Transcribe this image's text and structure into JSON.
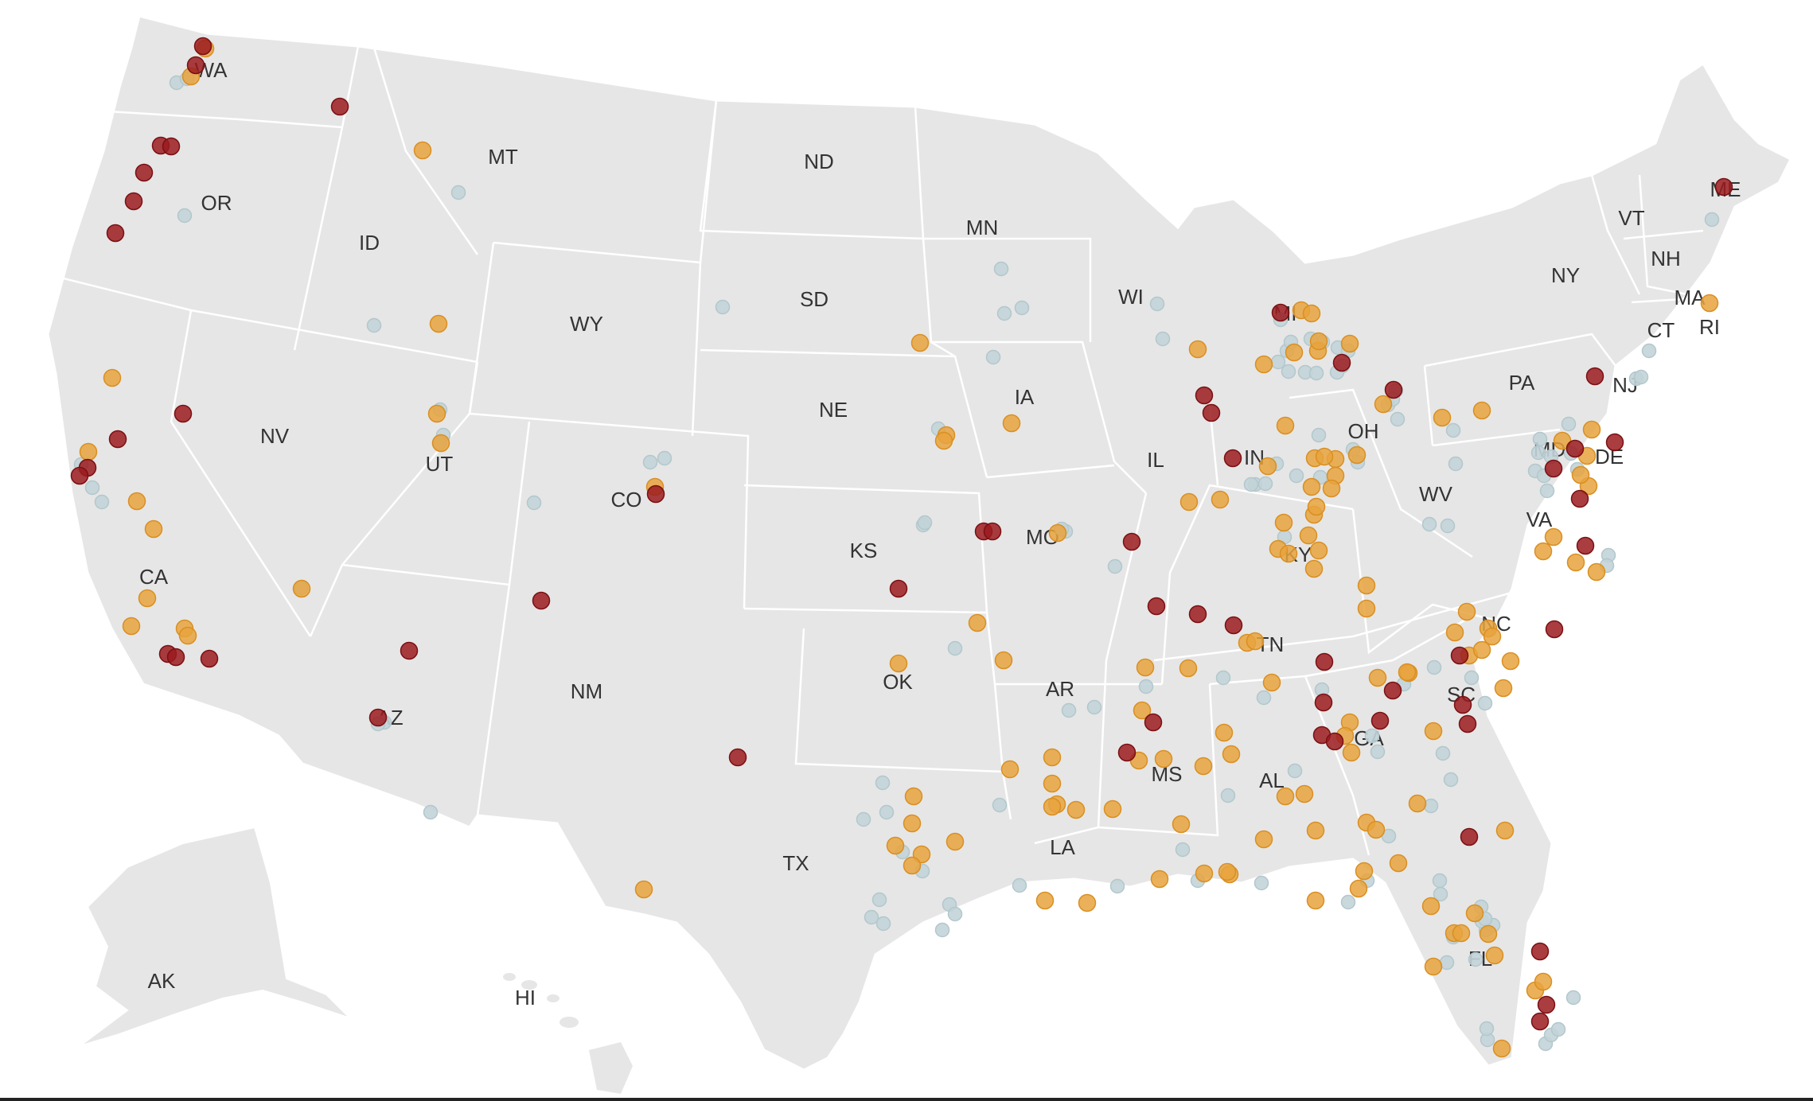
{
  "map": {
    "colors": {
      "background": "#ffffff",
      "land": "#e6e6e6",
      "border": "#ffffff",
      "red": "#9b1b1e",
      "orange": "#e8a33d",
      "blue": "#c2d4d8"
    },
    "state_labels": [
      "WA",
      "OR",
      "CA",
      "ID",
      "NV",
      "MT",
      "WY",
      "UT",
      "AZ",
      "CO",
      "NM",
      "ND",
      "SD",
      "NE",
      "KS",
      "OK",
      "TX",
      "MN",
      "IA",
      "MO",
      "AR",
      "LA",
      "WI",
      "IL",
      "MI",
      "IN",
      "OH",
      "KY",
      "TN",
      "MS",
      "AL",
      "GA",
      "FL",
      "SC",
      "NC",
      "VA",
      "WV",
      "PA",
      "NY",
      "VT",
      "NH",
      "ME",
      "MA",
      "RI",
      "CT",
      "NJ",
      "DE",
      "MD",
      "AK",
      "HI"
    ],
    "dot_categories": [
      "red",
      "orange",
      "blue"
    ]
  }
}
